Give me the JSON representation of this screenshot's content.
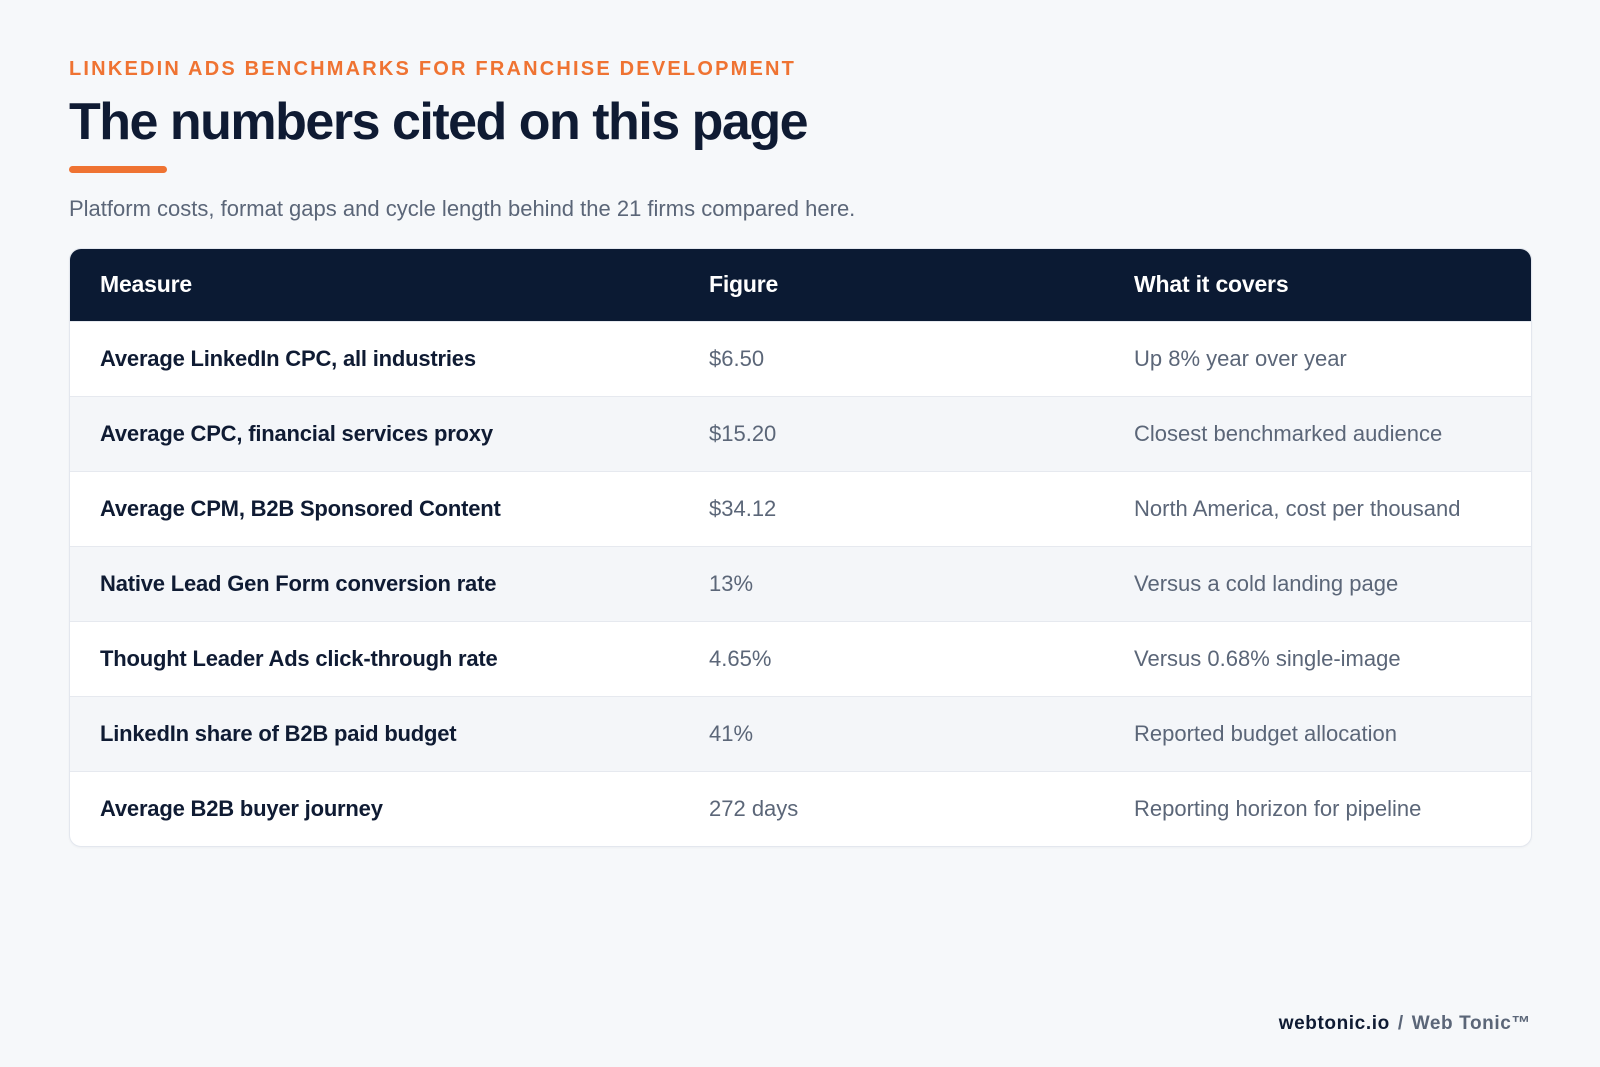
{
  "header": {
    "eyebrow": "LINKEDIN ADS BENCHMARKS FOR FRANCHISE DEVELOPMENT",
    "title": "The numbers cited on this page",
    "subtitle": "Platform costs, format gaps and cycle length behind the 21 firms compared here."
  },
  "table": {
    "columns": [
      "Measure",
      "Figure",
      "What it covers"
    ],
    "rows": [
      {
        "measure": "Average LinkedIn CPC, all industries",
        "figure": "$6.50",
        "covers": "Up 8% year over year"
      },
      {
        "measure": "Average CPC, financial services proxy",
        "figure": "$15.20",
        "covers": "Closest benchmarked audience"
      },
      {
        "measure": "Average CPM, B2B Sponsored Content",
        "figure": "$34.12",
        "covers": "North America, cost per thousand"
      },
      {
        "measure": "Native Lead Gen Form conversion rate",
        "figure": "13%",
        "covers": "Versus a cold landing page"
      },
      {
        "measure": "Thought Leader Ads click-through rate",
        "figure": "4.65%",
        "covers": "Versus 0.68% single-image"
      },
      {
        "measure": "LinkedIn share of B2B paid budget",
        "figure": "41%",
        "covers": "Reported budget allocation"
      },
      {
        "measure": "Average B2B buyer journey",
        "figure": "272 days",
        "covers": "Reporting horizon for pipeline"
      }
    ]
  },
  "footer": {
    "site": "webtonic.io",
    "separator": "/",
    "brand": "Web Tonic™"
  },
  "colors": {
    "accent": "#ef7332",
    "header_bg": "#0b1a33",
    "page_bg": "#f6f8fa"
  }
}
